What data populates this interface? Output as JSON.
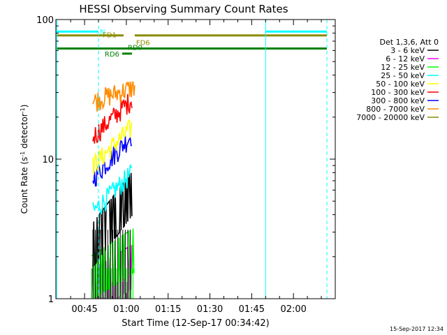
{
  "chart_data": {
    "type": "line",
    "title": "HESSI Observing Summary Count Rates",
    "xlabel": "Start Time (12-Sep-17 00:34:42)",
    "ylabel_main": "Count Rate (s",
    "ylabel_sup1": "-1",
    "ylabel_mid": " detector",
    "ylabel_sup2": "-1",
    "ylabel_end": ")",
    "y_scale": "log",
    "ylim": [
      1,
      100
    ],
    "xlim_minutes": [
      34.7,
      135.0
    ],
    "x_ticks": [
      {
        "label": "00:45",
        "minute": 45
      },
      {
        "label": "01:00",
        "minute": 60
      },
      {
        "label": "01:15",
        "minute": 75
      },
      {
        "label": "01:30",
        "minute": 90
      },
      {
        "label": "01:45",
        "minute": 105
      },
      {
        "label": "02:00",
        "minute": 120
      }
    ],
    "y_ticks": [
      {
        "label": "1",
        "value": 1
      },
      {
        "label": "10",
        "value": 10
      },
      {
        "label": "100",
        "value": 100
      }
    ],
    "legend_header": "Det 1,3,6, Att 0",
    "legend_placement": "right",
    "series": [
      {
        "name": "3 - 6 keV",
        "color": "#000000",
        "start": 48,
        "end": 62,
        "level_start": 2.6,
        "level_end": 6.0
      },
      {
        "name": "6 - 12 keV",
        "color": "#ff00ff",
        "start": 47.5,
        "end": 62,
        "level_start": 1.2,
        "level_end": 1.8
      },
      {
        "name": "12 - 25 keV",
        "color": "#00ff00",
        "start": 47.5,
        "end": 63,
        "level_start": 1.5,
        "level_end": 2.4
      },
      {
        "name": "25 - 50 keV",
        "color": "#00ffff",
        "start": 48,
        "end": 62,
        "level_start": 4.2,
        "level_end": 8.0
      },
      {
        "name": "50 - 100 keV",
        "color": "#ffff00",
        "start": 48,
        "end": 62,
        "level_start": 9.0,
        "level_end": 17.0
      },
      {
        "name": "100 - 300 keV",
        "color": "#ff0000",
        "start": 48,
        "end": 62,
        "level_start": 14.5,
        "level_end": 27.0
      },
      {
        "name": "300 - 800 keV",
        "color": "#0000ff",
        "start": 48,
        "end": 62,
        "level_start": 7.3,
        "level_end": 15.0
      },
      {
        "name": "800 - 7000 keV",
        "color": "#ff8c00",
        "start": 48,
        "end": 63,
        "level_start": 26.0,
        "level_end": 33.0
      },
      {
        "name": "7000 - 20000 keV",
        "color": "#8b8b00",
        "start": 48,
        "end": 48,
        "level_start": 26.0,
        "level_end": 26.0
      }
    ],
    "flags": [
      {
        "label": "N",
        "color": "#00ffff",
        "segments": [
          [
            35,
            50
          ],
          [
            110,
            132
          ]
        ],
        "level": 82
      },
      {
        "label": "FD1",
        "color": "#8b8b00",
        "segments": [
          [
            35,
            59
          ],
          [
            63,
            132
          ]
        ],
        "level": 77
      },
      {
        "label": "FD6",
        "color": "#8b8b00",
        "segments": [],
        "level": 68
      },
      {
        "label": "RD0",
        "color": "#008000",
        "segments": [
          [
            35,
            132
          ]
        ],
        "level": 62
      },
      {
        "label": "RD6",
        "color": "#008000",
        "segments": [
          [
            58.5,
            62
          ]
        ],
        "level": 57
      }
    ],
    "vertical_lines": [
      {
        "minute": 35,
        "style": "solid"
      },
      {
        "minute": 50,
        "style": "dashed"
      },
      {
        "minute": 110,
        "style": "solid"
      },
      {
        "minute": 132,
        "style": "dashed"
      }
    ]
  },
  "footer_timestamp": "15-Sep-2017 12:34"
}
